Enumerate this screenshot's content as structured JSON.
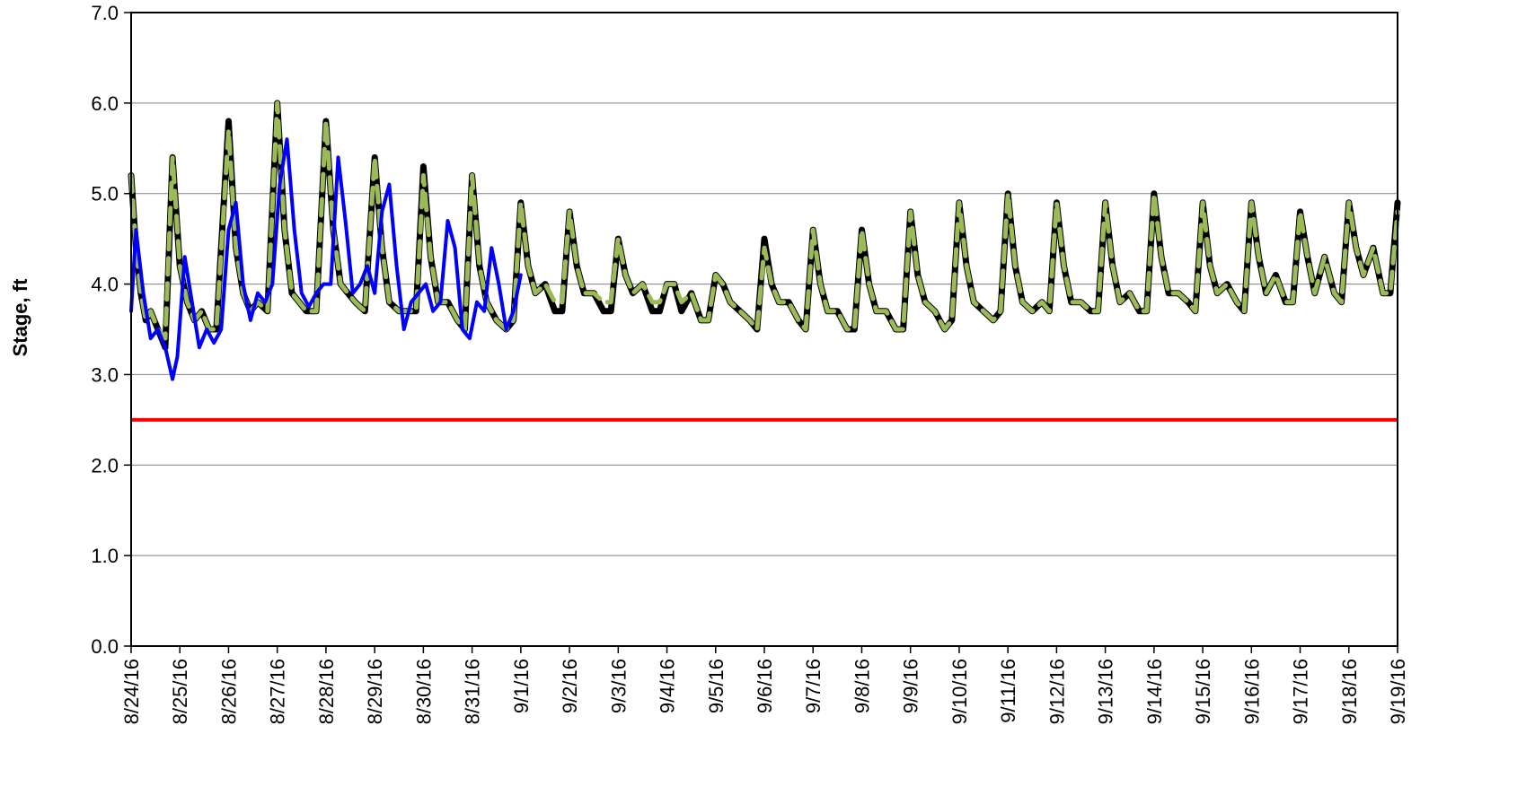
{
  "chart_data": {
    "type": "line",
    "title": "",
    "xlabel": "",
    "ylabel": "Stage, ft",
    "ylim": [
      0,
      7
    ],
    "yticks": [
      "0.0",
      "1.0",
      "2.0",
      "3.0",
      "4.0",
      "5.0",
      "6.0",
      "7.0"
    ],
    "xticks": [
      "8/24/16",
      "8/25/16",
      "8/26/16",
      "8/27/16",
      "8/28/16",
      "8/29/16",
      "8/30/16",
      "8/31/16",
      "9/1/16",
      "9/2/16",
      "9/3/16",
      "9/4/16",
      "9/5/16",
      "9/6/16",
      "9/7/16",
      "9/8/16",
      "9/9/16",
      "9/10/16",
      "9/11/16",
      "9/12/16",
      "9/13/16",
      "9/14/16",
      "9/15/16",
      "9/16/16",
      "9/17/16",
      "9/18/16",
      "9/19/16"
    ],
    "grid": true,
    "legend": "none",
    "colors": {
      "black_series": "#000000",
      "green_series": "#9bbb59",
      "blue_series": "#0000ff",
      "threshold": "#ff0000",
      "grid": "#808080"
    },
    "series": [
      {
        "style": "solid-black-thick",
        "x_days": [
          0,
          0.1,
          0.2,
          0.3,
          0.4,
          0.55,
          0.7,
          0.85,
          1.0,
          1.15,
          1.3,
          1.45,
          1.6,
          1.75,
          2.0,
          2.15,
          2.3,
          2.45,
          2.6,
          2.8,
          3.0,
          3.15,
          3.3,
          3.45,
          3.6,
          3.8,
          4.0,
          4.15,
          4.3,
          4.45,
          4.6,
          4.8,
          5.0,
          5.15,
          5.3,
          5.5,
          5.7,
          5.85,
          6.0,
          6.15,
          6.3,
          6.5,
          6.7,
          6.85,
          7.0,
          7.15,
          7.3,
          7.5,
          7.7,
          7.85,
          8.0,
          8.15,
          8.3,
          8.5,
          8.7,
          8.85,
          9.0,
          9.15,
          9.3,
          9.5,
          9.7,
          9.85,
          10.0,
          10.15,
          10.3,
          10.5,
          10.7,
          10.85,
          11.0,
          11.15,
          11.3,
          11.5,
          11.7,
          11.85,
          12.0,
          12.15,
          12.3,
          12.5,
          12.7,
          12.85,
          13.0,
          13.15,
          13.3,
          13.5,
          13.7,
          13.85,
          14.0,
          14.15,
          14.3,
          14.5,
          14.7,
          14.85,
          15.0,
          15.15,
          15.3,
          15.5,
          15.7,
          15.85,
          16.0,
          16.15,
          16.3,
          16.5,
          16.7,
          16.85,
          17.0,
          17.15,
          17.3,
          17.5,
          17.7,
          17.85,
          18.0,
          18.15,
          18.3,
          18.5,
          18.7,
          18.85,
          19.0,
          19.15,
          19.3,
          19.5,
          19.7,
          19.85,
          20.0,
          20.15,
          20.3,
          20.5,
          20.7,
          20.85,
          21.0,
          21.15,
          21.3,
          21.5,
          21.7,
          21.85,
          22.0,
          22.15,
          22.3,
          22.5,
          22.7,
          22.85,
          23.0,
          23.15,
          23.3,
          23.5,
          23.7,
          23.85,
          24.0,
          24.15,
          24.3,
          24.5,
          24.7,
          24.85,
          25.0,
          25.15,
          25.3,
          25.5,
          25.7,
          25.85,
          26.0
        ],
        "values": [
          5.2,
          4.4,
          3.9,
          3.6,
          3.7,
          3.5,
          3.3,
          5.4,
          4.2,
          3.8,
          3.6,
          3.7,
          3.5,
          3.5,
          5.8,
          4.4,
          3.9,
          3.7,
          3.8,
          3.7,
          6.0,
          4.6,
          3.9,
          3.8,
          3.7,
          3.7,
          5.8,
          4.6,
          4.0,
          3.9,
          3.8,
          3.7,
          5.4,
          4.4,
          3.8,
          3.7,
          3.7,
          3.7,
          5.3,
          4.3,
          3.8,
          3.8,
          3.6,
          3.5,
          5.2,
          4.2,
          3.8,
          3.6,
          3.5,
          3.6,
          4.9,
          4.2,
          3.9,
          4.0,
          3.7,
          3.7,
          4.8,
          4.2,
          3.9,
          3.9,
          3.7,
          3.7,
          4.5,
          4.1,
          3.9,
          4.0,
          3.7,
          3.7,
          4.0,
          4.0,
          3.7,
          3.9,
          3.6,
          3.6,
          4.1,
          4.0,
          3.8,
          3.7,
          3.6,
          3.5,
          4.5,
          4.0,
          3.8,
          3.8,
          3.6,
          3.5,
          4.6,
          4.0,
          3.7,
          3.7,
          3.5,
          3.5,
          4.6,
          4.0,
          3.7,
          3.7,
          3.5,
          3.5,
          4.8,
          4.1,
          3.8,
          3.7,
          3.5,
          3.6,
          4.9,
          4.2,
          3.8,
          3.7,
          3.6,
          3.7,
          5.0,
          4.2,
          3.8,
          3.7,
          3.8,
          3.7,
          4.9,
          4.2,
          3.8,
          3.8,
          3.7,
          3.7,
          4.9,
          4.2,
          3.8,
          3.9,
          3.7,
          3.7,
          5.0,
          4.3,
          3.9,
          3.9,
          3.8,
          3.7,
          4.9,
          4.2,
          3.9,
          4.0,
          3.8,
          3.7,
          4.9,
          4.3,
          3.9,
          4.1,
          3.8,
          3.8,
          4.8,
          4.3,
          3.9,
          4.3,
          3.9,
          3.8,
          4.9,
          4.4,
          4.1,
          4.4,
          3.9,
          3.9,
          4.9
        ]
      },
      {
        "style": "dashed-green",
        "x_days": [
          0,
          0.1,
          0.2,
          0.3,
          0.4,
          0.55,
          0.7,
          0.85,
          1.0,
          1.15,
          1.3,
          1.45,
          1.6,
          1.75,
          2.0,
          2.15,
          2.3,
          2.45,
          2.6,
          2.8,
          3.0,
          3.15,
          3.3,
          3.45,
          3.6,
          3.8,
          4.0,
          4.15,
          4.3,
          4.45,
          4.6,
          4.8,
          5.0,
          5.15,
          5.3,
          5.5,
          5.7,
          5.85,
          6.0,
          6.15,
          6.3,
          6.5,
          6.7,
          6.85,
          7.0,
          7.15,
          7.3,
          7.5,
          7.7,
          7.85,
          8.0,
          8.15,
          8.3,
          8.5,
          8.7,
          8.85,
          9.0,
          9.15,
          9.3,
          9.5,
          9.7,
          9.85,
          10.0,
          10.15,
          10.3,
          10.5,
          10.7,
          10.85,
          11.0,
          11.15,
          11.3,
          11.5,
          11.7,
          11.85,
          12.0,
          12.15,
          12.3,
          12.5,
          12.7,
          12.85,
          13.0,
          13.15,
          13.3,
          13.5,
          13.7,
          13.85,
          14.0,
          14.15,
          14.3,
          14.5,
          14.7,
          14.85,
          15.0,
          15.15,
          15.3,
          15.5,
          15.7,
          15.85,
          16.0,
          16.15,
          16.3,
          16.5,
          16.7,
          16.85,
          17.0,
          17.15,
          17.3,
          17.5,
          17.7,
          17.85,
          18.0,
          18.15,
          18.3,
          18.5,
          18.7,
          18.85,
          19.0,
          19.15,
          19.3,
          19.5,
          19.7,
          19.85,
          20.0,
          20.15,
          20.3,
          20.5,
          20.7,
          20.85,
          21.0,
          21.15,
          21.3,
          21.5,
          21.7,
          21.85,
          22.0,
          22.15,
          22.3,
          22.5,
          22.7,
          22.85,
          23.0,
          23.15,
          23.3,
          23.5,
          23.7,
          23.85,
          24.0,
          24.15,
          24.3,
          24.5,
          24.7,
          24.85,
          25.0,
          25.15,
          25.3,
          25.5,
          25.7,
          25.85,
          26.0
        ],
        "values": [
          5.2,
          4.4,
          3.9,
          3.6,
          3.7,
          3.5,
          3.4,
          5.4,
          4.2,
          3.8,
          3.6,
          3.7,
          3.5,
          3.5,
          5.7,
          4.4,
          3.9,
          3.7,
          3.8,
          3.7,
          6.0,
          4.6,
          3.9,
          3.8,
          3.7,
          3.7,
          5.8,
          4.6,
          4.0,
          3.9,
          3.8,
          3.7,
          5.4,
          4.4,
          3.8,
          3.7,
          3.7,
          3.7,
          5.2,
          4.3,
          3.8,
          3.8,
          3.6,
          3.5,
          5.2,
          4.2,
          3.8,
          3.6,
          3.5,
          3.6,
          4.9,
          4.2,
          3.9,
          4.0,
          3.8,
          3.8,
          4.8,
          4.2,
          3.9,
          3.9,
          3.8,
          3.8,
          4.5,
          4.1,
          3.9,
          4.0,
          3.8,
          3.8,
          4.0,
          4.0,
          3.8,
          3.9,
          3.6,
          3.6,
          4.1,
          4.0,
          3.8,
          3.7,
          3.6,
          3.5,
          4.4,
          4.0,
          3.8,
          3.8,
          3.6,
          3.5,
          4.6,
          4.0,
          3.7,
          3.7,
          3.5,
          3.5,
          4.6,
          4.0,
          3.7,
          3.7,
          3.5,
          3.5,
          4.8,
          4.1,
          3.8,
          3.7,
          3.5,
          3.6,
          4.9,
          4.2,
          3.8,
          3.7,
          3.6,
          3.7,
          5.0,
          4.2,
          3.8,
          3.7,
          3.8,
          3.7,
          4.9,
          4.2,
          3.8,
          3.8,
          3.7,
          3.7,
          4.9,
          4.2,
          3.8,
          3.9,
          3.7,
          3.7,
          5.0,
          4.3,
          3.9,
          3.9,
          3.8,
          3.7,
          4.9,
          4.2,
          3.9,
          4.0,
          3.8,
          3.7,
          4.9,
          4.3,
          3.9,
          4.1,
          3.8,
          3.8,
          4.8,
          4.3,
          3.9,
          4.3,
          3.9,
          3.8,
          4.9,
          4.4,
          4.1,
          4.4,
          3.9,
          3.9,
          4.8
        ]
      },
      {
        "style": "solid-blue",
        "x_days": [
          0,
          0.1,
          0.25,
          0.4,
          0.55,
          0.7,
          0.85,
          0.95,
          1.1,
          1.25,
          1.4,
          1.55,
          1.7,
          1.85,
          2.0,
          2.15,
          2.3,
          2.45,
          2.6,
          2.75,
          2.9,
          3.05,
          3.2,
          3.35,
          3.5,
          3.65,
          3.8,
          3.95,
          4.1,
          4.25,
          4.4,
          4.55,
          4.7,
          4.85,
          5.0,
          5.15,
          5.3,
          5.45,
          5.6,
          5.75,
          5.9,
          6.05,
          6.2,
          6.35,
          6.5,
          6.65,
          6.8,
          6.95,
          7.1,
          7.25,
          7.4,
          7.55,
          7.7,
          7.85,
          8.0
        ],
        "values": [
          3.7,
          4.6,
          3.9,
          3.4,
          3.5,
          3.3,
          2.95,
          3.2,
          4.3,
          3.8,
          3.3,
          3.5,
          3.35,
          3.5,
          4.6,
          4.9,
          4.0,
          3.6,
          3.9,
          3.8,
          4.0,
          5.1,
          5.6,
          4.6,
          3.9,
          3.75,
          3.9,
          4.0,
          4.0,
          5.4,
          4.7,
          3.9,
          4.0,
          4.2,
          3.9,
          4.8,
          5.1,
          4.2,
          3.5,
          3.8,
          3.9,
          4.0,
          3.7,
          3.8,
          4.7,
          4.4,
          3.5,
          3.4,
          3.8,
          3.7,
          4.4,
          4.0,
          3.5,
          3.7,
          4.1
        ]
      }
    ],
    "threshold_value": 2.5
  }
}
